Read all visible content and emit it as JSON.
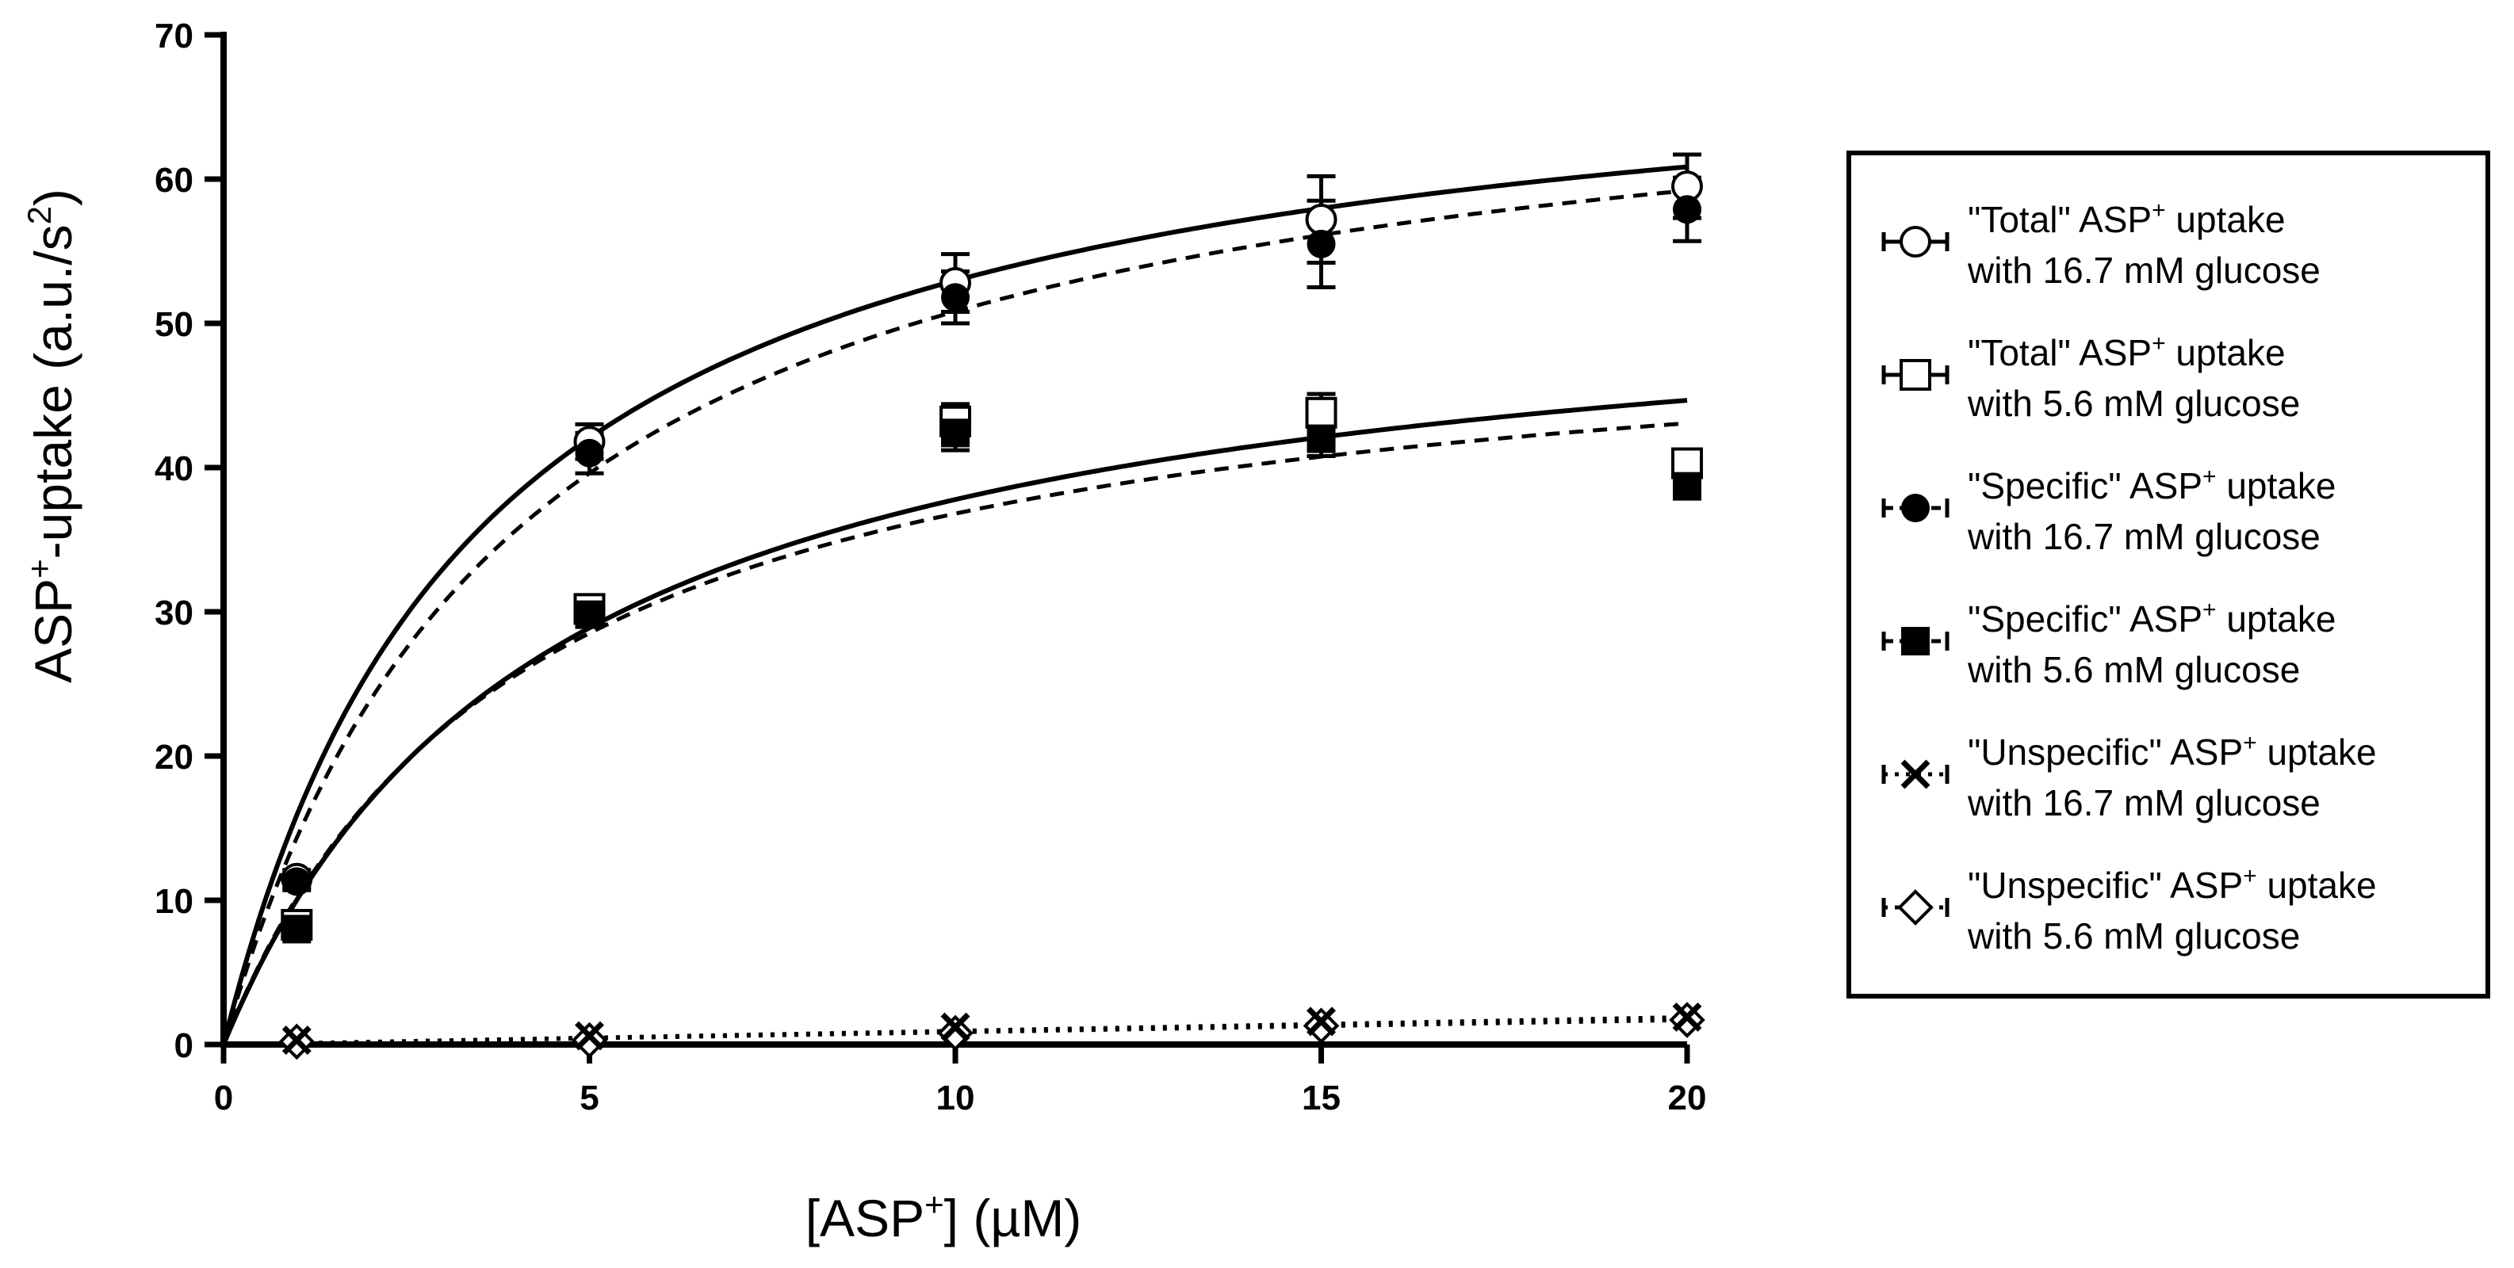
{
  "chart_data": {
    "type": "scatter",
    "title": "",
    "xlabel": {
      "pre": "[ASP",
      "sup": "+",
      "post": "] (µM)"
    },
    "ylabel": {
      "pre": "ASP",
      "sup": "+",
      "mid": "-uptake (a.u./s",
      "sup2": "2",
      "post": ")"
    },
    "xlim": [
      0,
      20
    ],
    "ylim": [
      0,
      70
    ],
    "xticks": [
      "0",
      "5",
      "10",
      "15",
      "20"
    ],
    "yticks": [
      "0",
      "10",
      "20",
      "30",
      "40",
      "50",
      "60",
      "70"
    ],
    "x": [
      1,
      5,
      10,
      15,
      20
    ],
    "series": [
      {
        "name_pre": "\"Total\" ASP",
        "name_sup": "+",
        "name_post": " uptake",
        "name_line2": "with 16.7 mM glucose",
        "marker": "open-circle",
        "curve": "solid",
        "values": [
          11.5,
          41.8,
          52.8,
          57.2,
          59.5
        ],
        "errors": [
          0.6,
          1.2,
          2.0,
          3.0,
          2.2
        ],
        "fit": {
          "vmax": 71.5,
          "km": 3.5
        }
      },
      {
        "name_pre": "\"Total\" ASP",
        "name_sup": "+",
        "name_post": " uptake",
        "name_line2": "with 5.6 mM glucose",
        "marker": "open-square",
        "curve": "solid",
        "values": [
          8.3,
          30.2,
          43.2,
          43.8,
          40.3
        ],
        "errors": [
          0.5,
          0.8,
          1.2,
          1.3,
          0.5
        ],
        "fit": {
          "vmax": 54.6,
          "km": 4.45
        }
      },
      {
        "name_pre": "\"Specific\" ASP",
        "name_sup": "+",
        "name_post": " uptake",
        "name_line2": "with 16.7 mM glucose",
        "marker": "filled-circle",
        "curve": "dashed",
        "values": [
          11.3,
          41.0,
          51.8,
          55.5,
          57.9
        ],
        "errors": [
          0.6,
          1.4,
          1.8,
          3.0,
          2.2
        ],
        "fit": {
          "vmax": 70.9,
          "km": 3.95
        }
      },
      {
        "name_pre": "\"Specific\" ASP",
        "name_sup": "+",
        "name_post": " uptake",
        "name_line2": "with 5.6 mM glucose",
        "marker": "filled-square",
        "curve": "dashed",
        "values": [
          8.0,
          29.8,
          42.4,
          42.0,
          38.7
        ],
        "errors": [
          0.5,
          0.8,
          1.2,
          1.2,
          0.5
        ],
        "fit": {
          "vmax": 51.9,
          "km": 4.1
        }
      },
      {
        "name_pre": "\"Unspecific\" ASP",
        "name_sup": "+",
        "name_post": " uptake",
        "name_line2": "with 16.7 mM glucose",
        "marker": "cross",
        "curve": "dotted",
        "values": [
          0.3,
          0.6,
          1.2,
          1.6,
          1.9
        ],
        "errors": [
          0,
          0,
          0,
          0,
          0
        ],
        "fit": {
          "slope": 0.095
        }
      },
      {
        "name_pre": "\"Unspecific\" ASP",
        "name_sup": "+",
        "name_post": " uptake",
        "name_line2": "with 5.6 mM glucose",
        "marker": "open-diamond",
        "curve": "dotted",
        "values": [
          0.2,
          0.3,
          0.8,
          1.3,
          1.7
        ],
        "errors": [
          0,
          0,
          0,
          0,
          0
        ],
        "fit": {
          "slope": 0.085
        }
      }
    ],
    "legend_position": "right"
  }
}
